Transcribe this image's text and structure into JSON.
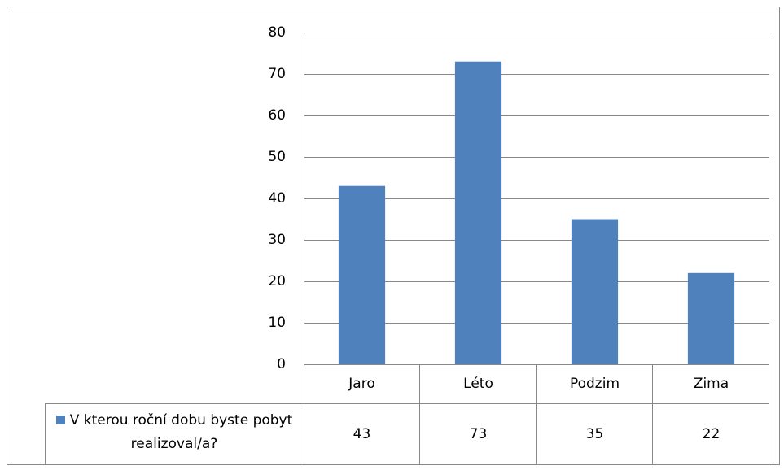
{
  "chart_data": {
    "type": "bar",
    "categories": [
      "Jaro",
      "Léto",
      "Podzim",
      "Zima"
    ],
    "series": [
      {
        "name": "V kterou roční dobu byste pobyt realizoval/a?",
        "color": "#4f81bd",
        "values": [
          43,
          73,
          35,
          22
        ]
      }
    ],
    "ylim": [
      0,
      80
    ],
    "yticks": [
      0,
      10,
      20,
      30,
      40,
      50,
      60,
      70,
      80
    ],
    "grid": true,
    "legend": "table"
  }
}
